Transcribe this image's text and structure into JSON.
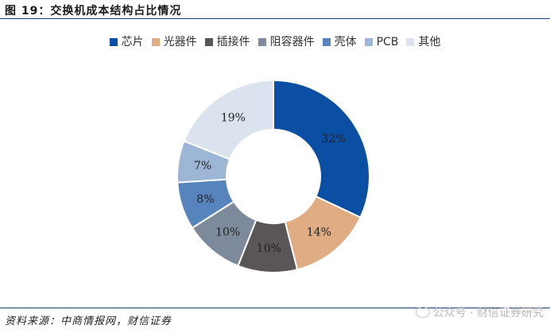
{
  "figure": {
    "title": "图 19：交换机成本结构占比情况",
    "source": "资料来源：中商情报网，财信证券",
    "watermark": "公众号 · 财信证券研究"
  },
  "chart_data": {
    "type": "pie",
    "donut": true,
    "title": "",
    "legend_position": "top",
    "slices": [
      {
        "name": "芯片",
        "value": 32,
        "label": "32%",
        "color": "#0a4fa3"
      },
      {
        "name": "光器件",
        "value": 14,
        "label": "14%",
        "color": "#e0ac84"
      },
      {
        "name": "插接件",
        "value": 10,
        "label": "10%",
        "color": "#5a5556"
      },
      {
        "name": "阻容器件",
        "value": 10,
        "label": "10%",
        "color": "#7d8a9b"
      },
      {
        "name": "壳体",
        "value": 8,
        "label": "8%",
        "color": "#5784bd"
      },
      {
        "name": "PCB",
        "value": 7,
        "label": "7%",
        "color": "#9db6d6"
      },
      {
        "name": "其他",
        "value": 19,
        "label": "19%",
        "color": "#dbe3ee"
      }
    ]
  }
}
